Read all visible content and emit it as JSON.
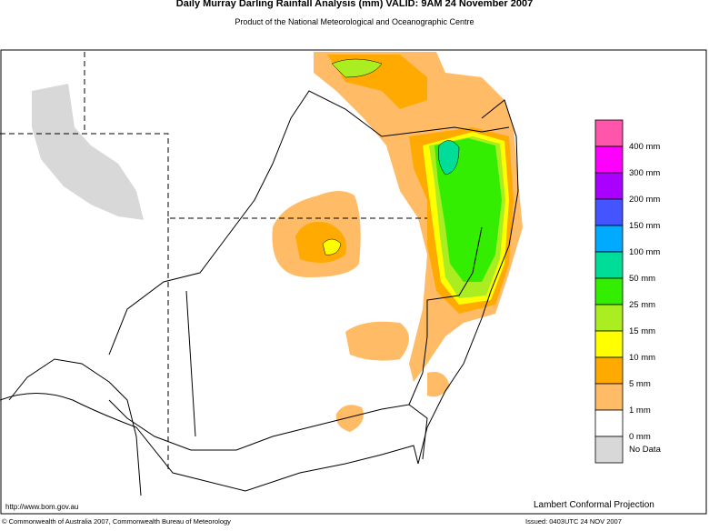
{
  "header": {
    "title": "Daily Murray Darling Rainfall Analysis (mm)  VALID: 9AM 24 November 2007",
    "subtitle": "Product of the National Meteorological and Oceanographic Centre"
  },
  "legend": {
    "items": [
      {
        "label": "400 mm",
        "color": "#ff55aa"
      },
      {
        "label": "300 mm",
        "color": "#ff00ff"
      },
      {
        "label": "200 mm",
        "color": "#aa00ff"
      },
      {
        "label": "150 mm",
        "color": "#4455ff"
      },
      {
        "label": "100 mm",
        "color": "#00aaff"
      },
      {
        "label": "50 mm",
        "color": "#00dd99"
      },
      {
        "label": "25 mm",
        "color": "#33ee00"
      },
      {
        "label": "15 mm",
        "color": "#aaee22"
      },
      {
        "label": "10 mm",
        "color": "#ffff00"
      },
      {
        "label": "5 mm",
        "color": "#ffaa00"
      },
      {
        "label": "1 mm",
        "color": "#ffbb66"
      },
      {
        "label": "0 mm",
        "color": "#ffffff"
      },
      {
        "label": "No Data",
        "color": "#d8d8d8"
      }
    ]
  },
  "footer": {
    "url": "http://www.bom.gov.au",
    "projection": "Lambert Conformal Projection",
    "copyright": "© Commonwealth of Australia 2007, Commonwealth Bureau of Meteorology",
    "issued": "Issued: 0403UTC 24 NOV 2007"
  }
}
